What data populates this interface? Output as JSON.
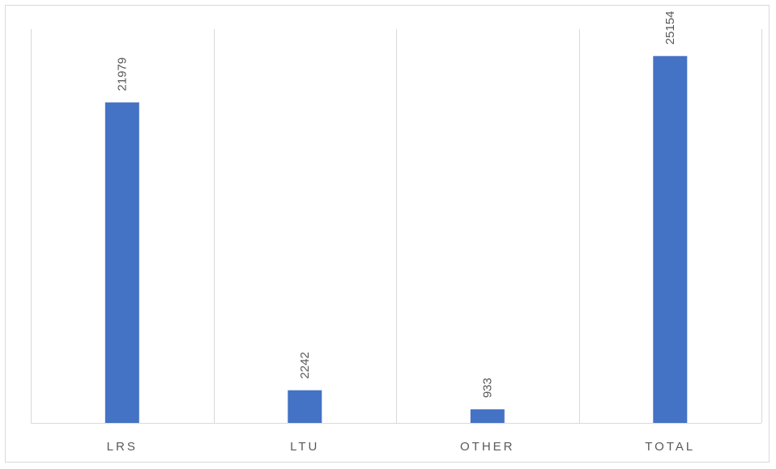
{
  "chart_data": {
    "type": "bar",
    "categories": [
      "LRS",
      "LTU",
      "OTHER",
      "TOTAL"
    ],
    "values": [
      21979,
      2242,
      933,
      25154
    ],
    "data_labels": [
      "21979",
      "2242",
      "933",
      "25154"
    ],
    "title": "",
    "xlabel": "",
    "ylabel": "",
    "ylim": [
      0,
      27000
    ],
    "grid": "vertical-category-separators",
    "legend": "none",
    "bar_color": "#4472c4",
    "gridline_color": "#d9d9d9",
    "label_color": "#595959"
  }
}
